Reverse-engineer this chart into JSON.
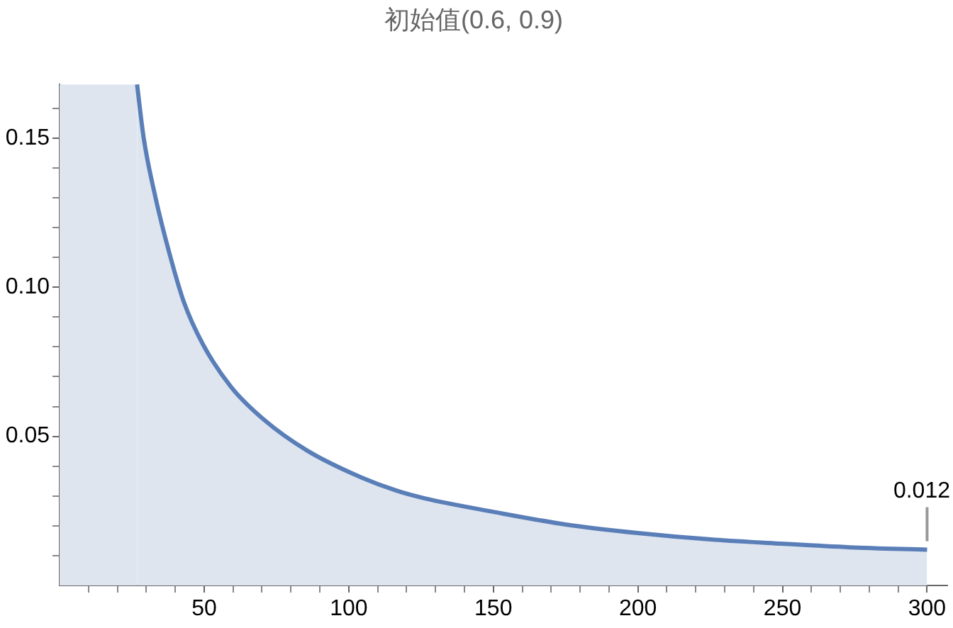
{
  "chart_data": {
    "type": "area",
    "title": "初始值(0.6, 0.9)",
    "x": [
      26.8,
      29.1,
      33.2,
      38.1,
      43.0,
      49.5,
      59.3,
      70.8,
      85.5,
      101.8,
      116.5,
      126.3,
      150,
      175.4,
      199.9,
      224.4,
      249.9,
      273.4,
      300
    ],
    "series": [
      {
        "color": "#5a7fb8",
        "values": [
          0.168,
          0.15,
          0.13,
          0.111,
          0.095,
          0.081,
          0.0666,
          0.0555,
          0.0453,
          0.0373,
          0.0318,
          0.0292,
          0.0247,
          0.0204,
          0.0176,
          0.0155,
          0.014,
          0.0128,
          0.012
        ]
      }
    ],
    "bands": [
      {
        "axis": "x",
        "from": 0,
        "to": 26.8,
        "color": "#dfe5ef"
      }
    ],
    "annotations": [
      {
        "text": "0.012",
        "x": 300,
        "y": 0.012
      }
    ],
    "xlim": [
      0,
      307
    ],
    "ylim": [
      0,
      0.168
    ],
    "xticks": [
      {
        "value": 10,
        "label": null
      },
      {
        "value": 20,
        "label": null
      },
      {
        "value": 30,
        "label": null
      },
      {
        "value": 40,
        "label": null
      },
      50,
      {
        "value": 60,
        "label": null
      },
      {
        "value": 70,
        "label": null
      },
      {
        "value": 80,
        "label": null
      },
      {
        "value": 90,
        "label": null
      },
      100,
      {
        "value": 110,
        "label": null
      },
      {
        "value": 120,
        "label": null
      },
      {
        "value": 130,
        "label": null
      },
      {
        "value": 140,
        "label": null
      },
      150,
      {
        "value": 160,
        "label": null
      },
      {
        "value": 170,
        "label": null
      },
      {
        "value": 180,
        "label": null
      },
      {
        "value": 190,
        "label": null
      },
      200,
      {
        "value": 210,
        "label": null
      },
      {
        "value": 220,
        "label": null
      },
      {
        "value": 230,
        "label": null
      },
      {
        "value": 240,
        "label": null
      },
      250,
      {
        "value": 260,
        "label": null
      },
      {
        "value": 270,
        "label": null
      },
      {
        "value": 280,
        "label": null
      },
      {
        "value": 290,
        "label": null
      },
      300
    ],
    "yticks": [
      {
        "value": 0.01,
        "label": null
      },
      {
        "value": 0.02,
        "label": null
      },
      {
        "value": 0.03,
        "label": null
      },
      {
        "value": 0.04,
        "label": null
      },
      {
        "value": 0.05,
        "label": "0.05"
      },
      {
        "value": 0.06,
        "label": null
      },
      {
        "value": 0.07,
        "label": null
      },
      {
        "value": 0.08,
        "label": null
      },
      {
        "value": 0.09,
        "label": null
      },
      {
        "value": 0.1,
        "label": "0.10"
      },
      {
        "value": 0.11,
        "label": null
      },
      {
        "value": 0.12,
        "label": null
      },
      {
        "value": 0.13,
        "label": null
      },
      {
        "value": 0.14,
        "label": null
      },
      {
        "value": 0.15,
        "label": "0.15"
      },
      {
        "value": 0.16,
        "label": null
      }
    ],
    "grid": false,
    "legend": false,
    "marker": "none",
    "line_style": "solid"
  }
}
